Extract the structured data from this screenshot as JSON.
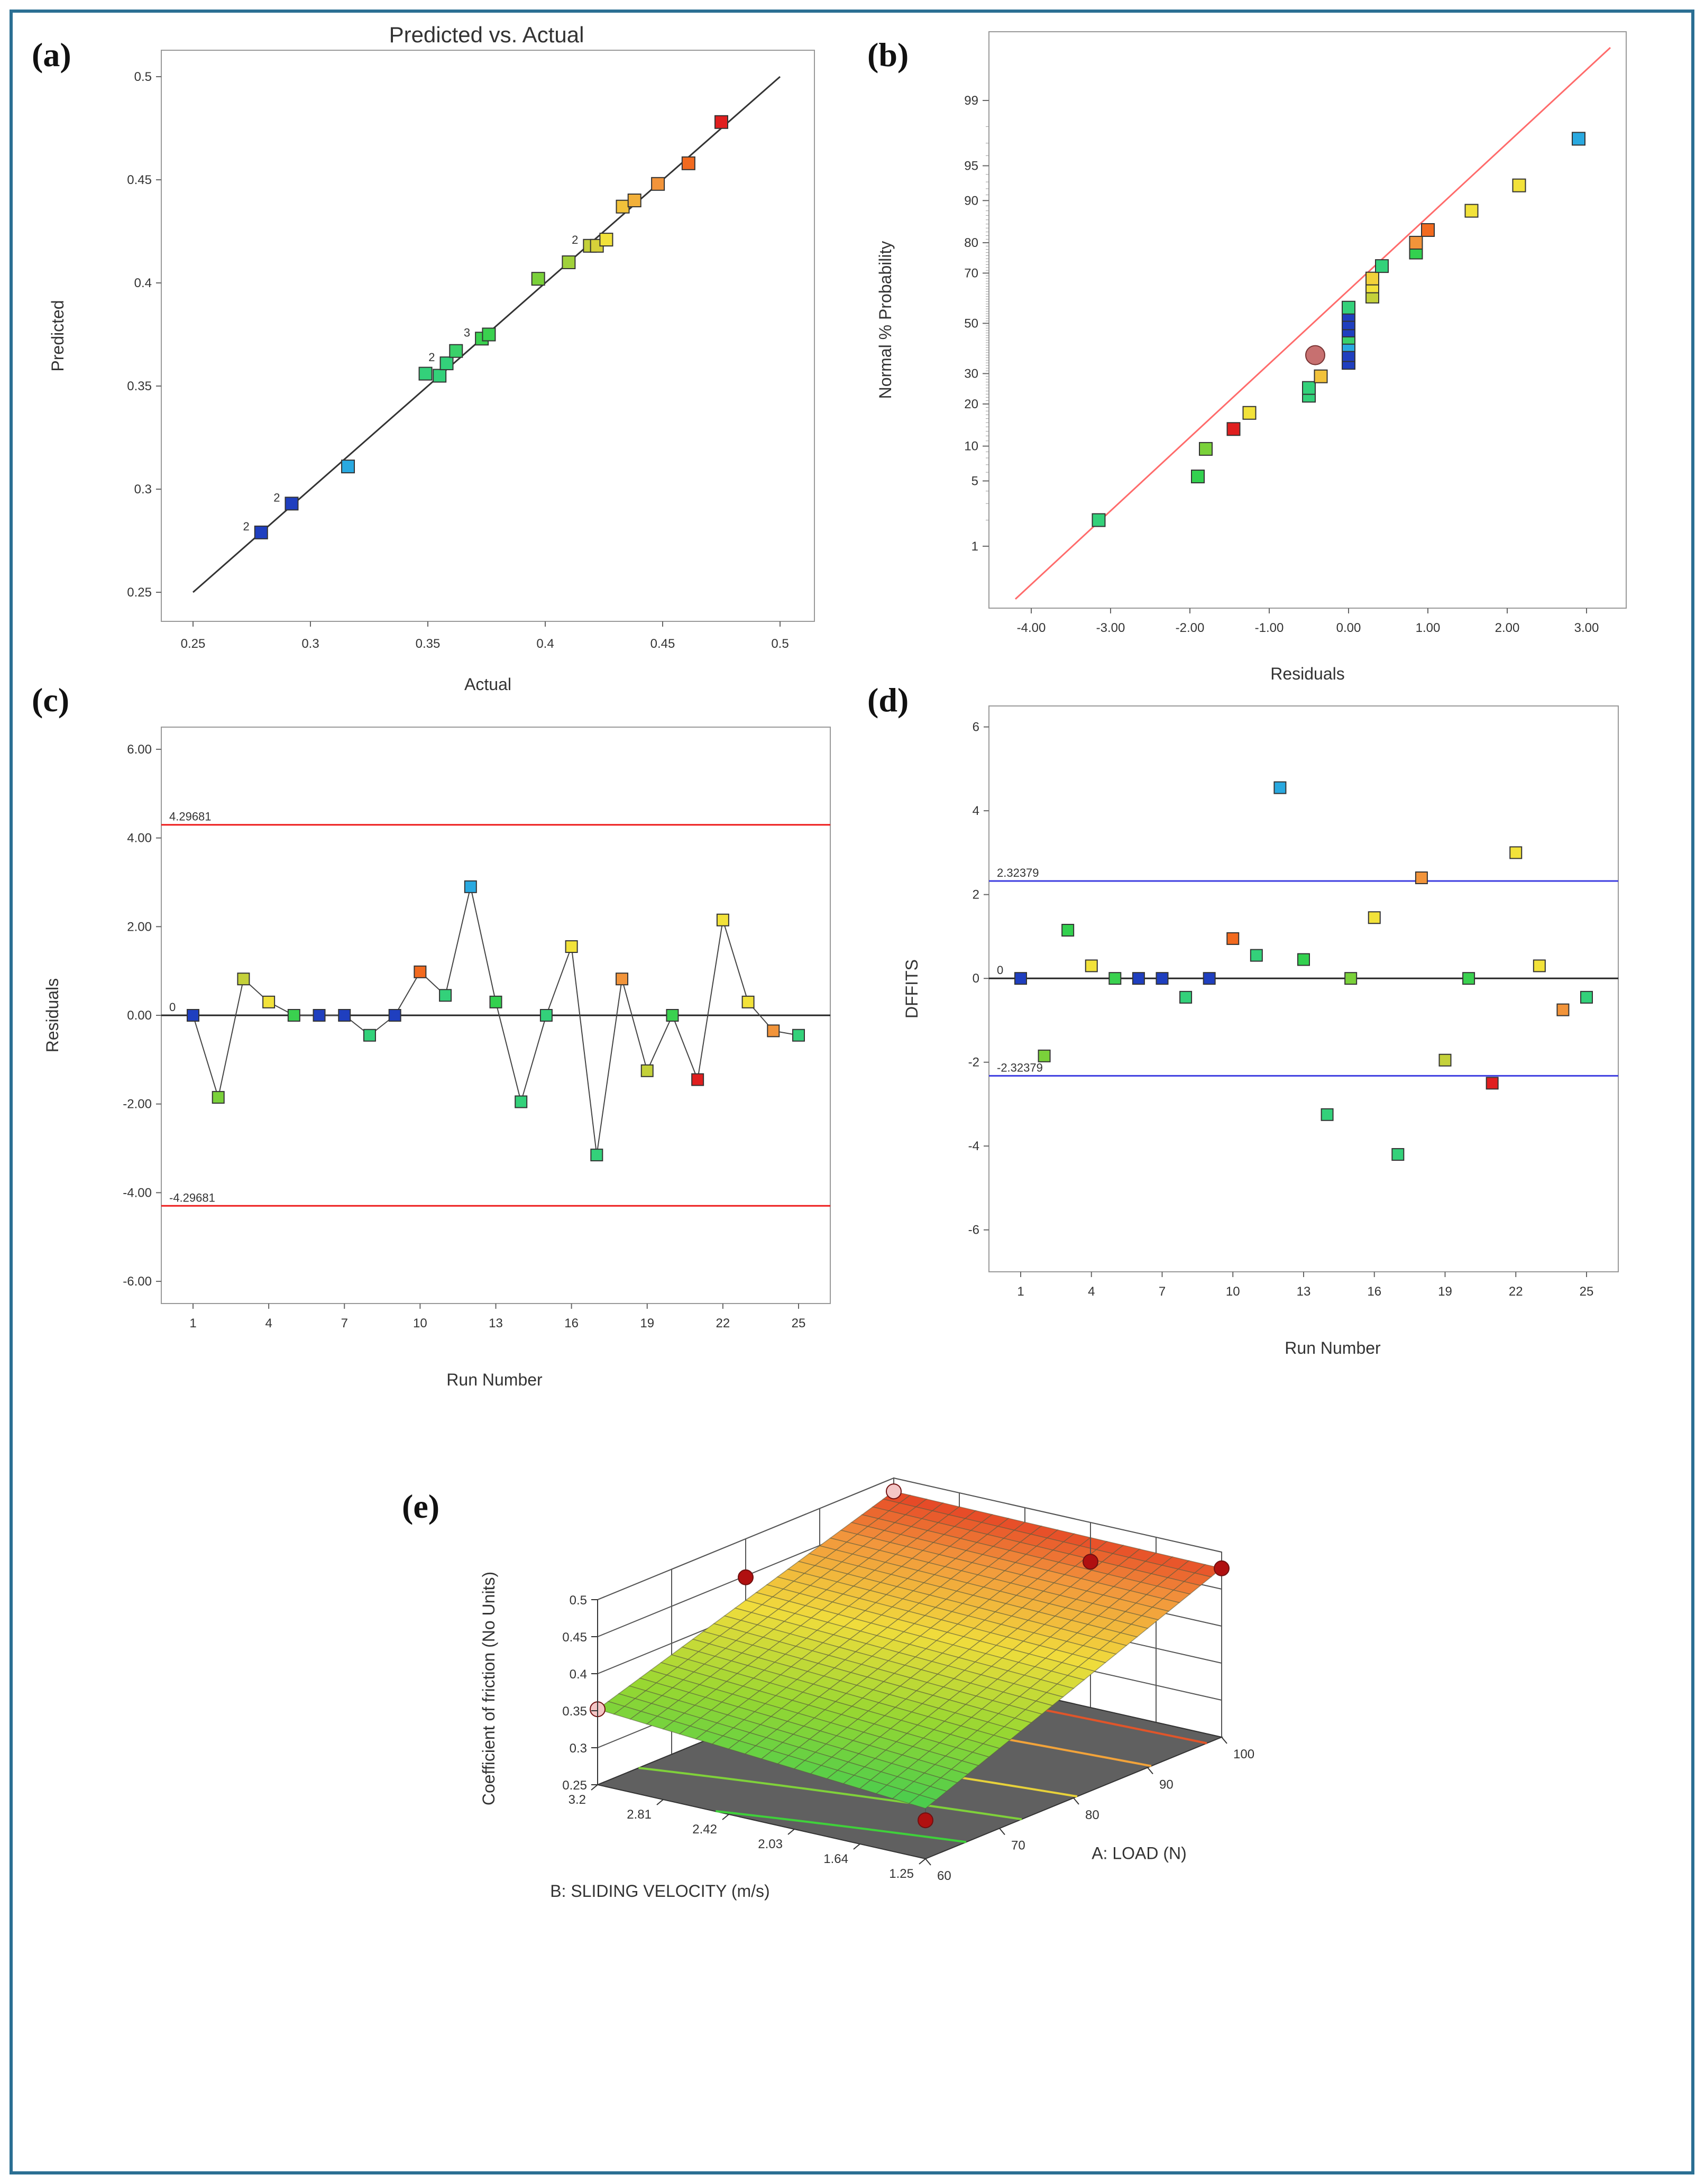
{
  "colors": {
    "frame": "#2b6f93",
    "fit_line": "#ff6b6b",
    "limit_red": "#ee1c1c",
    "limit_blue": "#3d3de0",
    "floor": "#606060"
  },
  "chart_data": [
    {
      "panel": "(a)",
      "type": "scatter",
      "title": "Predicted vs. Actual",
      "xlabel": "Actual",
      "ylabel": "Predicted",
      "xlim": [
        0.25,
        0.5
      ],
      "ylim": [
        0.25,
        0.5
      ],
      "xticks": [
        "0.25",
        "0.3",
        "0.35",
        "0.4",
        "0.45",
        "0.5"
      ],
      "yticks": [
        "0.25",
        "0.3",
        "0.35",
        "0.4",
        "0.45",
        "0.5"
      ],
      "fit_line": [
        [
          0.25,
          0.25
        ],
        [
          0.5,
          0.5
        ]
      ],
      "points": [
        {
          "x": 0.279,
          "y": 0.279,
          "color": "#1f3fbf",
          "count": "2"
        },
        {
          "x": 0.292,
          "y": 0.293,
          "color": "#1f3fbf",
          "count": "2"
        },
        {
          "x": 0.316,
          "y": 0.311,
          "color": "#29a9e0"
        },
        {
          "x": 0.349,
          "y": 0.356,
          "color": "#33d17a"
        },
        {
          "x": 0.355,
          "y": 0.355,
          "color": "#33d17a"
        },
        {
          "x": 0.358,
          "y": 0.361,
          "color": "#33d17a",
          "count": "2"
        },
        {
          "x": 0.362,
          "y": 0.367,
          "color": "#3ad16a"
        },
        {
          "x": 0.373,
          "y": 0.373,
          "color": "#3ad14f",
          "count": "3"
        },
        {
          "x": 0.376,
          "y": 0.375,
          "color": "#3ad14f"
        },
        {
          "x": 0.397,
          "y": 0.402,
          "color": "#7ad13a"
        },
        {
          "x": 0.41,
          "y": 0.41,
          "color": "#a0d13a"
        },
        {
          "x": 0.419,
          "y": 0.418,
          "color": "#c4d13a",
          "count": "2"
        },
        {
          "x": 0.422,
          "y": 0.418,
          "color": "#d6d13a"
        },
        {
          "x": 0.426,
          "y": 0.421,
          "color": "#f2e23a"
        },
        {
          "x": 0.433,
          "y": 0.437,
          "color": "#f2c23a"
        },
        {
          "x": 0.438,
          "y": 0.44,
          "color": "#f2b03a"
        },
        {
          "x": 0.448,
          "y": 0.448,
          "color": "#f2943a"
        },
        {
          "x": 0.461,
          "y": 0.458,
          "color": "#f26a1f"
        },
        {
          "x": 0.475,
          "y": 0.478,
          "color": "#e01f1f"
        }
      ]
    },
    {
      "panel": "(b)",
      "type": "scatter",
      "xlabel": "Residuals",
      "ylabel": "Normal % Probability",
      "xlim": [
        -4.3,
        3.3
      ],
      "xticks": [
        "-4.00",
        "-3.00",
        "-2.00",
        "-1.00",
        "0.00",
        "1.00",
        "2.00",
        "3.00"
      ],
      "yticks": [
        "1",
        "5",
        "10",
        "20",
        "30",
        "50",
        "70",
        "80",
        "90",
        "95",
        "99"
      ],
      "fit_line": [
        [
          -4.2,
          0.2
        ],
        [
          3.3,
          99.8
        ]
      ],
      "points": [
        {
          "x": -3.15,
          "p": 2.0,
          "color": "#33d17a"
        },
        {
          "x": -1.9,
          "p": 5.5,
          "color": "#33d14f"
        },
        {
          "x": -1.8,
          "p": 9.5,
          "color": "#7ad13a"
        },
        {
          "x": -1.45,
          "p": 13.5,
          "color": "#e01f1f"
        },
        {
          "x": -1.25,
          "p": 17.5,
          "color": "#f2e23a"
        },
        {
          "x": -0.5,
          "p": 22.5,
          "color": "#33d17a"
        },
        {
          "x": -0.5,
          "p": 25.0,
          "color": "#33d17a"
        },
        {
          "x": -0.35,
          "p": 29.0,
          "color": "#f2c23a"
        },
        {
          "x": -0.42,
          "p": 37.0,
          "color": "#c77070",
          "highlight": true
        },
        {
          "x": 0.0,
          "p": 34.0,
          "color": "#1f3fbf"
        },
        {
          "x": 0.0,
          "p": 37.0,
          "color": "#1f3fbf"
        },
        {
          "x": 0.0,
          "p": 41.0,
          "color": "#29a9e0"
        },
        {
          "x": 0.0,
          "p": 44.0,
          "color": "#3ad16a"
        },
        {
          "x": 0.0,
          "p": 47.0,
          "color": "#1f3fbf"
        },
        {
          "x": 0.0,
          "p": 50.0,
          "color": "#1f3fbf"
        },
        {
          "x": 0.0,
          "p": 53.5,
          "color": "#1f3fbf"
        },
        {
          "x": 0.0,
          "p": 56.5,
          "color": "#33d17a"
        },
        {
          "x": 0.3,
          "p": 61.0,
          "color": "#c4d13a"
        },
        {
          "x": 0.3,
          "p": 65.0,
          "color": "#f2e23a"
        },
        {
          "x": 0.3,
          "p": 68.0,
          "color": "#f2d23a"
        },
        {
          "x": 0.42,
          "p": 72.5,
          "color": "#33d17a"
        },
        {
          "x": 0.85,
          "p": 77.0,
          "color": "#33d14f"
        },
        {
          "x": 0.85,
          "p": 80.0,
          "color": "#f2943a"
        },
        {
          "x": 1.0,
          "p": 83.5,
          "color": "#f26a1f"
        },
        {
          "x": 1.55,
          "p": 88.0,
          "color": "#f2e23a"
        },
        {
          "x": 2.15,
          "p": 92.5,
          "color": "#f2e23a"
        },
        {
          "x": 2.9,
          "p": 97.3,
          "color": "#29a9e0"
        }
      ]
    },
    {
      "panel": "(c)",
      "type": "line",
      "xlabel": "Run Number",
      "ylabel": "Residuals",
      "ylim": [
        -6.5,
        6.5
      ],
      "xticks": [
        "1",
        "4",
        "7",
        "10",
        "13",
        "16",
        "19",
        "22",
        "25"
      ],
      "yticks": [
        "-6.00",
        "-4.00",
        "-2.00",
        "0.00",
        "2.00",
        "4.00",
        "6.00"
      ],
      "limits": [
        {
          "value": 4.29681,
          "label": "4.29681"
        },
        {
          "value": -4.29681,
          "label": "-4.29681"
        }
      ],
      "zero_label": "0",
      "x": [
        1,
        2,
        3,
        4,
        5,
        6,
        7,
        8,
        9,
        10,
        11,
        12,
        13,
        14,
        15,
        16,
        17,
        18,
        19,
        20,
        21,
        22,
        23,
        24,
        25
      ],
      "values": [
        0.0,
        -1.85,
        0.82,
        0.3,
        0.0,
        0.0,
        0.0,
        -0.45,
        0.0,
        0.98,
        0.45,
        2.9,
        0.3,
        -1.95,
        0.0,
        1.55,
        -3.15,
        0.82,
        -1.25,
        0.0,
        -1.45,
        2.15,
        0.3,
        -0.35,
        -0.45
      ],
      "point_colors": [
        "#1f3fbf",
        "#7ad13a",
        "#c4d13a",
        "#f2e23a",
        "#3ad14f",
        "#1f3fbf",
        "#1f3fbf",
        "#33d17a",
        "#1f3fbf",
        "#f26a1f",
        "#33d17a",
        "#29a9e0",
        "#33d14f",
        "#33d17a",
        "#33d17a",
        "#f2e23a",
        "#33d17a",
        "#f2943a",
        "#c4d13a",
        "#3ad14f",
        "#e01f1f",
        "#f2e23a",
        "#f2e23a",
        "#f2943a",
        "#33d17a"
      ]
    },
    {
      "panel": "(d)",
      "type": "scatter",
      "xlabel": "Run Number",
      "ylabel": "DFFITS",
      "ylim": [
        -7,
        6.5
      ],
      "xticks": [
        "1",
        "4",
        "7",
        "10",
        "13",
        "16",
        "19",
        "22",
        "25"
      ],
      "yticks": [
        "-6",
        "-4",
        "-2",
        "0",
        "2",
        "4",
        "6"
      ],
      "limits": [
        {
          "value": 2.32379,
          "label": "2.32379"
        },
        {
          "value": -2.32379,
          "label": "-2.32379"
        }
      ],
      "zero_label": "0",
      "x": [
        1,
        2,
        3,
        4,
        5,
        6,
        7,
        8,
        9,
        10,
        11,
        12,
        13,
        14,
        15,
        16,
        17,
        18,
        19,
        20,
        21,
        22,
        23,
        24,
        25
      ],
      "values": [
        0.0,
        -1.85,
        1.15,
        0.3,
        0.0,
        0.0,
        0.0,
        -0.45,
        0.0,
        0.95,
        0.55,
        4.55,
        0.45,
        -3.25,
        0.0,
        1.45,
        -4.2,
        2.4,
        -1.95,
        0.0,
        -2.5,
        3.0,
        0.3,
        -0.75,
        -0.45
      ],
      "point_colors": [
        "#1f3fbf",
        "#7ad13a",
        "#33d14f",
        "#f2e23a",
        "#3ad14f",
        "#1f3fbf",
        "#1f3fbf",
        "#33d17a",
        "#1f3fbf",
        "#f26a1f",
        "#33d17a",
        "#29a9e0",
        "#33d14f",
        "#33d17a",
        "#7ad13a",
        "#f2e23a",
        "#33d17a",
        "#f2943a",
        "#c4d13a",
        "#3ad14f",
        "#e01f1f",
        "#f2e23a",
        "#f2e23a",
        "#f2943a",
        "#33d17a"
      ]
    },
    {
      "panel": "(e)",
      "type": "surface",
      "zlabel": "Coefficient of friction (No Units)",
      "xlabel": "A: LOAD (N)",
      "ylabel": "B: SLIDING VELOCITY (m/s)",
      "zlim": [
        0.25,
        0.5
      ],
      "xticks": [
        "60",
        "70",
        "80",
        "90",
        "100"
      ],
      "yticks": [
        "1.25",
        "1.64",
        "2.03",
        "2.42",
        "2.81",
        "3.2"
      ],
      "zticks": [
        "0.25",
        "0.3",
        "0.35",
        "0.4",
        "0.45",
        "0.5"
      ],
      "corner_values": {
        "load60_vel3.2": 0.352,
        "load60_vel1.25": 0.318,
        "load100_vel3.2": 0.482,
        "load100_vel1.25": 0.478
      },
      "design_points": [
        {
          "load": 60,
          "velocity": 3.2,
          "cof": 0.352,
          "above": false
        },
        {
          "load": 60,
          "velocity": 1.25,
          "cof": 0.302,
          "above": false
        },
        {
          "load": 100,
          "velocity": 3.2,
          "cof": 0.482,
          "above": false
        },
        {
          "load": 100,
          "velocity": 1.25,
          "cof": 0.478,
          "above": false
        },
        {
          "load": 80,
          "velocity": 3.2,
          "cof": 0.448,
          "above": true
        },
        {
          "load": 100,
          "velocity": 2.03,
          "cof": 0.447,
          "above": false
        }
      ]
    }
  ]
}
